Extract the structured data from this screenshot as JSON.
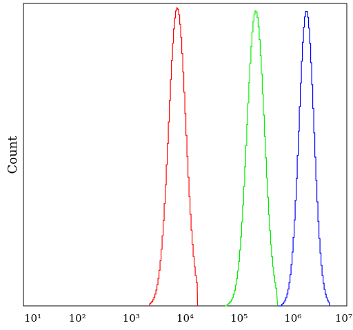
{
  "chart_data": {
    "type": "line",
    "xlabel": "",
    "ylabel": "Count",
    "x_scale": "log",
    "xlim": [
      10,
      10000000
    ],
    "ylim": [
      0,
      1
    ],
    "x_ticks": [
      {
        "value": 10,
        "label": "10¹"
      },
      {
        "value": 100,
        "label": "10²"
      },
      {
        "value": 1000,
        "label": "10³"
      },
      {
        "value": 10000,
        "label": "10⁴"
      },
      {
        "value": 100000,
        "label": "10⁵"
      },
      {
        "value": 1000000,
        "label": "10⁶"
      },
      {
        "value": 10000000,
        "label": "10⁷"
      }
    ],
    "grid": false,
    "legend": "none",
    "series": [
      {
        "color": "#ff0000",
        "peak_x": 7000,
        "log_width": 0.16,
        "height": 0.99,
        "x_range": [
          2200,
          17000
        ]
      },
      {
        "color": "#00ee00",
        "peak_x": 200000,
        "log_width": 0.16,
        "height": 0.98,
        "x_range": [
          55000,
          520000
        ]
      },
      {
        "color": "#0000ff",
        "peak_x": 1750000,
        "log_width": 0.14,
        "height": 0.98,
        "x_range": [
          520000,
          4800000
        ]
      }
    ]
  }
}
